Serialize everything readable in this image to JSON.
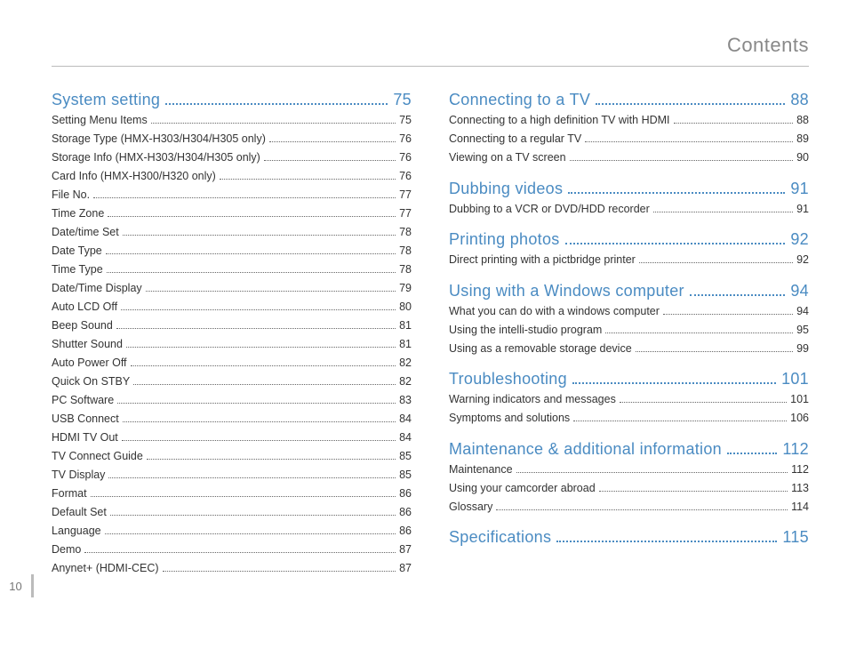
{
  "page_title": "Contents",
  "page_number": "10",
  "colors": {
    "heading": "#4a8bc2",
    "text": "#333333",
    "rule": "#bbbbbb",
    "page_title": "#888888"
  },
  "columns": [
    [
      {
        "title": "System setting",
        "page": "75",
        "items": [
          {
            "label": "Setting Menu Items",
            "page": "75"
          },
          {
            "label": "Storage Type (HMX-H303/H304/H305 only)",
            "page": "76"
          },
          {
            "label": "Storage Info (HMX-H303/H304/H305 only)",
            "page": "76"
          },
          {
            "label": "Card Info (HMX-H300/H320 only)",
            "page": "76"
          },
          {
            "label": "File No.",
            "page": "77"
          },
          {
            "label": "Time Zone",
            "page": "77"
          },
          {
            "label": "Date/time Set",
            "page": "78"
          },
          {
            "label": "Date Type",
            "page": "78"
          },
          {
            "label": "Time Type",
            "page": "78"
          },
          {
            "label": "Date/Time Display",
            "page": "79"
          },
          {
            "label": "Auto LCD Off",
            "page": "80"
          },
          {
            "label": "Beep Sound",
            "page": "81"
          },
          {
            "label": "Shutter Sound",
            "page": "81"
          },
          {
            "label": "Auto Power Off",
            "page": "82"
          },
          {
            "label": "Quick On STBY",
            "page": "82"
          },
          {
            "label": "PC Software",
            "page": "83"
          },
          {
            "label": "USB Connect",
            "page": "84"
          },
          {
            "label": "HDMI TV Out",
            "page": "84"
          },
          {
            "label": "TV Connect Guide",
            "page": "85"
          },
          {
            "label": "TV Display",
            "page": "85"
          },
          {
            "label": "Format",
            "page": "86"
          },
          {
            "label": "Default Set",
            "page": "86"
          },
          {
            "label": "Language",
            "page": "86"
          },
          {
            "label": "Demo",
            "page": "87"
          },
          {
            "label": "Anynet+ (HDMI-CEC)",
            "page": "87"
          }
        ]
      }
    ],
    [
      {
        "title": "Connecting to a TV",
        "page": "88",
        "items": [
          {
            "label": "Connecting to a high definition TV with HDMI",
            "page": "88"
          },
          {
            "label": "Connecting to a regular TV",
            "page": "89"
          },
          {
            "label": "Viewing on a TV screen",
            "page": "90"
          }
        ]
      },
      {
        "title": "Dubbing videos",
        "page": "91",
        "items": [
          {
            "label": "Dubbing to a VCR or DVD/HDD recorder",
            "page": "91"
          }
        ]
      },
      {
        "title": "Printing photos",
        "page": "92",
        "items": [
          {
            "label": "Direct printing with a pictbridge printer",
            "page": "92"
          }
        ]
      },
      {
        "title": "Using with a Windows computer",
        "page": "94",
        "items": [
          {
            "label": "What you can do with a windows computer",
            "page": "94"
          },
          {
            "label": "Using the intelli-studio program",
            "page": "95"
          },
          {
            "label": "Using as a removable storage device",
            "page": "99"
          }
        ]
      },
      {
        "title": "Troubleshooting",
        "page": "101",
        "items": [
          {
            "label": "Warning indicators and messages",
            "page": "101"
          },
          {
            "label": "Symptoms and solutions",
            "page": "106"
          }
        ]
      },
      {
        "title": "Maintenance & additional information",
        "page": "112",
        "items": [
          {
            "label": "Maintenance",
            "page": "112"
          },
          {
            "label": "Using your camcorder abroad",
            "page": "113"
          },
          {
            "label": "Glossary",
            "page": "114"
          }
        ]
      },
      {
        "title": "Specifications",
        "page": "115",
        "items": []
      }
    ]
  ]
}
